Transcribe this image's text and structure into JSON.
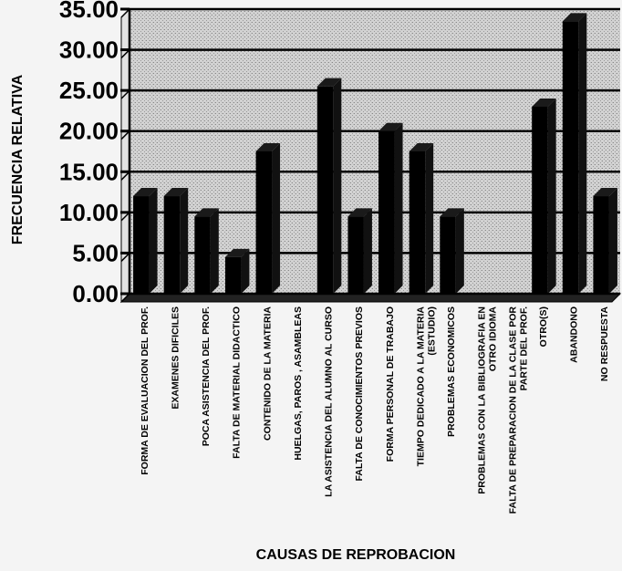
{
  "chart_data": {
    "type": "bar",
    "title": "",
    "xlabel": "CAUSAS DE REPROBACION",
    "ylabel": "FRECUENCIA RELATIVA",
    "ylim": [
      0,
      35
    ],
    "yticks": [
      "0.00",
      "5.00",
      "10.00",
      "15.00",
      "20.00",
      "25.00",
      "30.00",
      "35.00"
    ],
    "grid": true,
    "legend": "none",
    "categories": [
      "FORMA DE EVALUACION DEL PROF.",
      "EXAMENES DIFICILES",
      "POCA ASISTENCIA DEL PROF.",
      "FALTA DE MATERIAL DIDACTICO",
      "CONTENIDO DE LA MATERIA",
      "HUELGAS, PAROS , ASAMBLEAS",
      "LA ASISTENCIA DEL ALUMNO AL CURSO",
      "FALTA DE CONOCIMIENTOS PREVIOS",
      "FORMA PERSONAL DE TRABAJO",
      "TIEMPO DEDICADO A LA MATERIA (ESTUDIO)",
      "PROBLEMAS ECONOMICOS",
      "PROBLEMAS CON LA BIBLIOGRAFIA EN OTRO IDIOMA",
      "FALTA DE PREPARACION DE LA CLASE POR PARTE DEL PROF.",
      "OTRO(S)",
      "ABANDONO",
      "NO RESPUESTA"
    ],
    "values": [
      12,
      12,
      9.5,
      4.5,
      17.5,
      0,
      25.5,
      9.5,
      20,
      17.5,
      9.5,
      0,
      0,
      23,
      33.5,
      12
    ],
    "colors": {
      "bar": "#000000",
      "plot_bg": "#cccccc",
      "page_bg": "#f4f4f4",
      "grid": "#000000"
    }
  }
}
